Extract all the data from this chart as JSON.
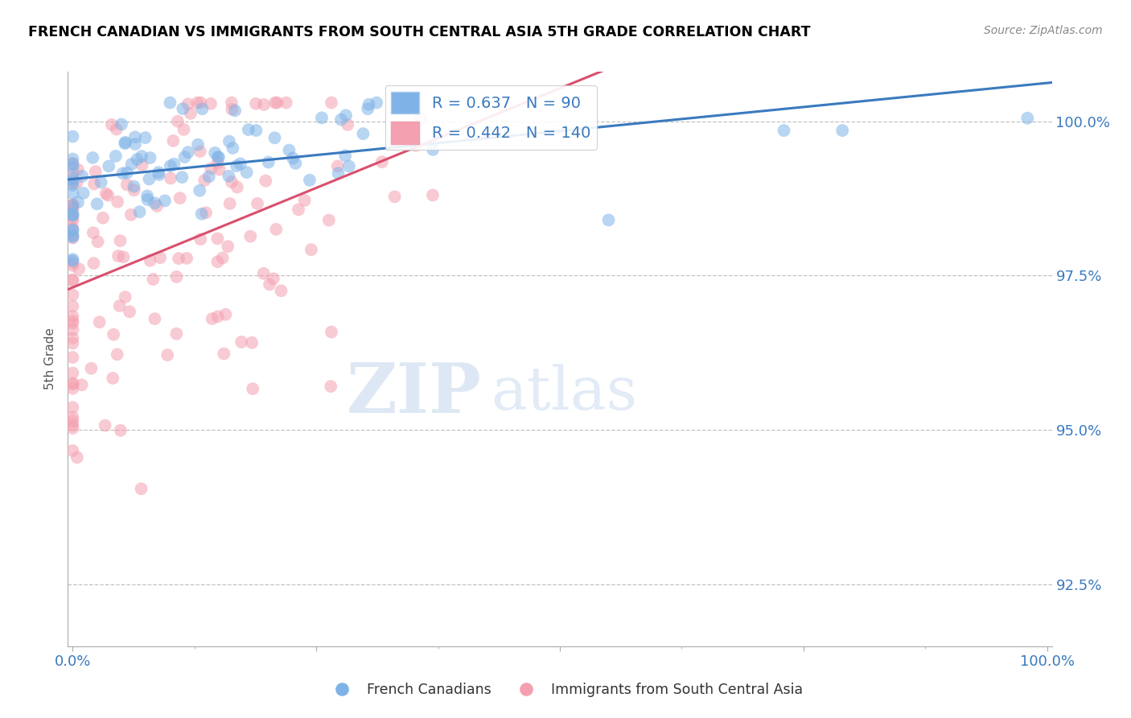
{
  "title": "FRENCH CANADIAN VS IMMIGRANTS FROM SOUTH CENTRAL ASIA 5TH GRADE CORRELATION CHART",
  "source": "Source: ZipAtlas.com",
  "ylabel": "5th Grade",
  "yticks": [
    92.5,
    95.0,
    97.5,
    100.0
  ],
  "ytick_labels": [
    "92.5%",
    "95.0%",
    "97.5%",
    "100.0%"
  ],
  "xlim": [
    0.0,
    1.0
  ],
  "ylim": [
    91.5,
    100.8
  ],
  "blue_R": 0.637,
  "blue_N": 90,
  "pink_R": 0.442,
  "pink_N": 140,
  "blue_color": "#7fb3e8",
  "pink_color": "#f4a0b0",
  "blue_line_color": "#3a7abf",
  "pink_line_color": "#d94f6e",
  "legend_blue_label": "French Canadians",
  "legend_pink_label": "Immigrants from South Central Asia",
  "watermark_zip": "ZIP",
  "watermark_atlas": "atlas",
  "background_color": "#ffffff",
  "grid_color": "#cccccc",
  "title_color": "#000000",
  "axis_label_color": "#3a7abf",
  "seed": 42
}
